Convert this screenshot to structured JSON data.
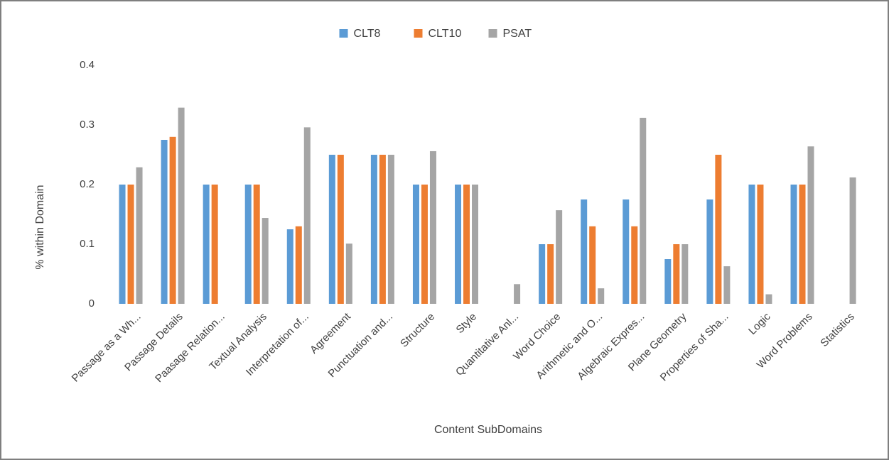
{
  "chart_data": {
    "type": "bar",
    "x_label": "Content SubDomains",
    "y_label": "% within Domain",
    "categories": [
      "Passage as a Wh...",
      "Passage Details",
      "Paasage Relation...",
      "Textual Analysis",
      "Interpretation of...",
      "Agreement",
      "Punctuation and...",
      "Structure",
      "Style",
      "Quantitative Anl...",
      "Word Choice",
      "Arithmetic and O...",
      "Algebraic Expres...",
      "Plane Geometry",
      "Properties of Sha...",
      "Logic",
      "Word Problems",
      "Statistics"
    ],
    "series": [
      {
        "name": "CLT8",
        "color": "#5b9bd5",
        "values": [
          0.2,
          0.275,
          0.2,
          0.2,
          0.125,
          0.25,
          0.25,
          0.2,
          0.2,
          null,
          0.1,
          0.175,
          0.175,
          0.075,
          0.175,
          0.2,
          0.2,
          null
        ]
      },
      {
        "name": "CLT10",
        "color": "#ed7d31",
        "values": [
          0.2,
          0.28,
          0.2,
          0.2,
          0.13,
          0.25,
          0.25,
          0.2,
          0.2,
          null,
          0.1,
          0.13,
          0.13,
          0.1,
          0.25,
          0.2,
          0.2,
          null
        ]
      },
      {
        "name": "PSAT",
        "color": "#a5a5a5",
        "values": [
          0.229,
          0.329,
          null,
          0.144,
          0.296,
          0.101,
          0.25,
          0.256,
          0.2,
          0.033,
          0.157,
          0.026,
          0.312,
          0.1,
          0.063,
          0.016,
          0.264,
          0.212
        ]
      }
    ],
    "ylim": [
      0,
      0.4
    ],
    "yticks": [
      0,
      0.1,
      0.2,
      0.3,
      0.4
    ],
    "grid": false,
    "legend": "top"
  }
}
